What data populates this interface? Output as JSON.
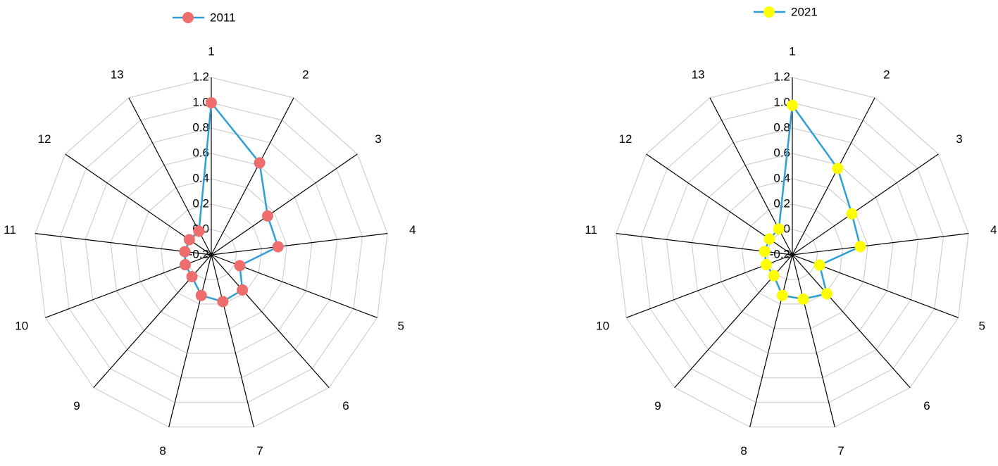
{
  "chart_data": [
    {
      "type": "radar",
      "categories": [
        "1",
        "2",
        "3",
        "4",
        "5",
        "6",
        "7",
        "8",
        "9",
        "10",
        "11",
        "12",
        "13"
      ],
      "ylim": [
        -0.2,
        1.2
      ],
      "yticks": [
        -0.2,
        {
          "value": 0,
          "label": "0.0"
        },
        0.2,
        0.4,
        0.6,
        0.8,
        {
          "value": 1,
          "label": "1.0"
        },
        1.2
      ],
      "grid": true,
      "legend": "top",
      "series": [
        {
          "name": "2011",
          "color": "#2f9fd3",
          "marker_color": "#ee6e6e",
          "values": [
            1.0,
            0.62,
            0.34,
            0.33,
            0.04,
            0.17,
            0.18,
            0.13,
            0.03,
            0.02,
            0.01,
            0.01,
            0.01
          ]
        }
      ]
    },
    {
      "type": "radar",
      "categories": [
        "1",
        "2",
        "3",
        "4",
        "5",
        "6",
        "7",
        "8",
        "9",
        "10",
        "11",
        "12",
        "13"
      ],
      "ylim": [
        -0.2,
        1.2
      ],
      "yticks": [
        -0.2,
        {
          "value": 0,
          "label": "0.0"
        },
        0.2,
        0.4,
        0.6,
        0.8,
        {
          "value": 1,
          "label": "1.0"
        },
        1.2
      ],
      "grid": true,
      "legend": "top",
      "series": [
        {
          "name": "2021",
          "color": "#2f9fd3",
          "marker_color": "#ffff00",
          "values": [
            0.98,
            0.57,
            0.37,
            0.34,
            0.03,
            0.21,
            0.16,
            0.13,
            0.02,
            0.02,
            0.02,
            0.02,
            0.03
          ]
        }
      ]
    }
  ]
}
